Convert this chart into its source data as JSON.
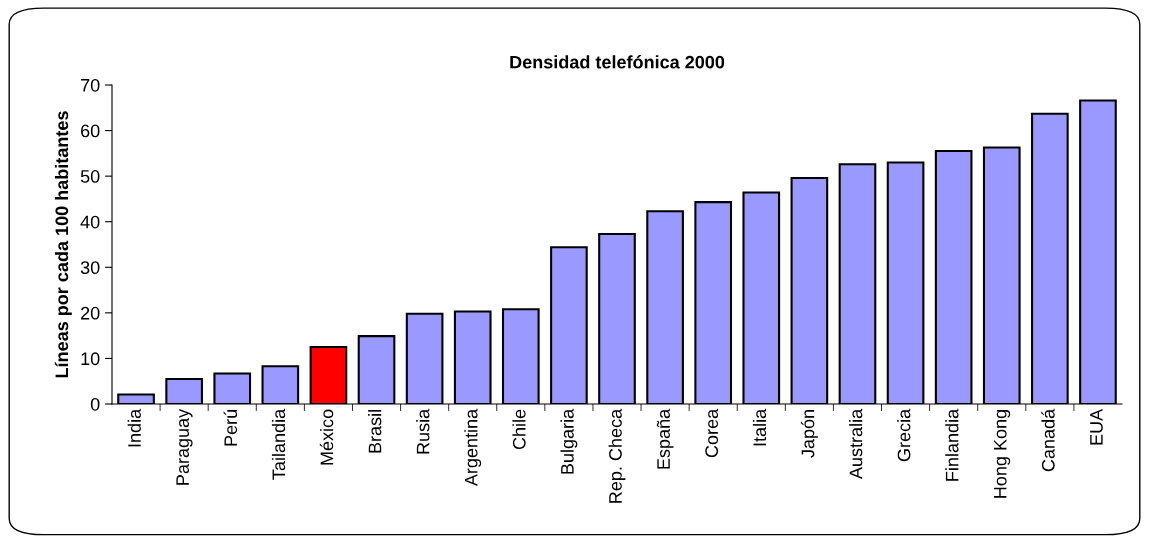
{
  "chart_data": {
    "type": "bar",
    "title": "Densidad telefónica 2000",
    "ylabel": "Líneas por cada 100 habitantes",
    "categories": [
      "India",
      "Paraguay",
      "Perú",
      "Tailandia",
      "México",
      "Brasil",
      "Rusia",
      "Argentina",
      "Chile",
      "Bulgaria",
      "Rep. Checa",
      "España",
      "Corea",
      "Italia",
      "Japón",
      "Australia",
      "Grecia",
      "Finlandia",
      "Hong Kong",
      "Canadá",
      "EUA"
    ],
    "values": [
      2.1,
      5.5,
      6.7,
      8.3,
      12.5,
      14.9,
      19.8,
      20.3,
      20.8,
      34.4,
      37.3,
      42.3,
      44.3,
      46.4,
      49.6,
      52.6,
      53.0,
      55.5,
      56.3,
      63.7,
      66.6
    ],
    "colors": [
      "#9999ff",
      "#9999ff",
      "#9999ff",
      "#9999ff",
      "#ff0000",
      "#9999ff",
      "#9999ff",
      "#9999ff",
      "#9999ff",
      "#9999ff",
      "#9999ff",
      "#9999ff",
      "#9999ff",
      "#9999ff",
      "#9999ff",
      "#9999ff",
      "#9999ff",
      "#9999ff",
      "#9999ff",
      "#9999ff",
      "#9999ff"
    ],
    "ylim": [
      0,
      70
    ],
    "yticks": [
      0,
      10,
      20,
      30,
      40,
      50,
      60,
      70
    ],
    "grid": false,
    "legend": false
  }
}
